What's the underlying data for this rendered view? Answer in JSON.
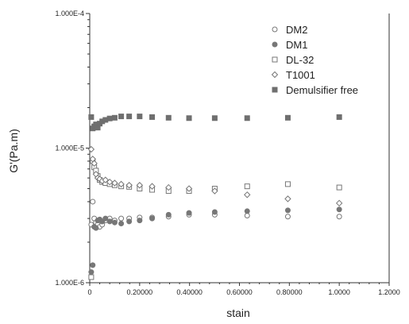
{
  "chart_data": {
    "type": "scatter",
    "title": "",
    "xlabel": "stain",
    "ylabel": "G'(Pa.m)",
    "xlim": [
      0,
      1.2
    ],
    "ylim": [
      1e-06,
      0.0001
    ],
    "yscale": "log",
    "grid": false,
    "legend_position": "top-right",
    "x_ticks": [
      {
        "value": 0,
        "label": "0"
      },
      {
        "value": 0.2,
        "label": "0.20000"
      },
      {
        "value": 0.4,
        "label": "0.40000"
      },
      {
        "value": 0.6,
        "label": "0.60000"
      },
      {
        "value": 0.8,
        "label": "0.80000"
      },
      {
        "value": 1.0,
        "label": "1.0000"
      },
      {
        "value": 1.2,
        "label": "1.2000"
      }
    ],
    "y_ticks": [
      {
        "value": 1e-06,
        "label": "1.000E-6"
      },
      {
        "value": 1e-05,
        "label": "1.000E-5"
      },
      {
        "value": 0.0001,
        "label": "1.000E-4"
      }
    ],
    "series": [
      {
        "name": "DM2",
        "marker": "circle-open",
        "color": "#777777",
        "x": [
          0.006,
          0.012,
          0.018,
          0.025,
          0.032,
          0.04,
          0.05,
          0.063,
          0.08,
          0.1,
          0.126,
          0.158,
          0.2,
          0.25,
          0.316,
          0.398,
          0.501,
          0.631,
          0.794,
          1.0
        ],
        "y": [
          2.7e-06,
          4e-06,
          3e-06,
          2.8e-06,
          2.7e-06,
          2.6e-06,
          2.7e-06,
          2.9e-06,
          3e-06,
          2.9e-06,
          3e-06,
          3e-06,
          3.05e-06,
          3.05e-06,
          3.1e-06,
          3.2e-06,
          3.2e-06,
          3.15e-06,
          3.1e-06,
          3.1e-06
        ]
      },
      {
        "name": "DM1",
        "marker": "circle-filled",
        "color": "#777777",
        "x": [
          0.006,
          0.012,
          0.018,
          0.025,
          0.032,
          0.04,
          0.05,
          0.063,
          0.08,
          0.1,
          0.126,
          0.158,
          0.2,
          0.25,
          0.316,
          0.398,
          0.501,
          0.631,
          0.794,
          1.0
        ],
        "y": [
          1.2e-06,
          1.35e-06,
          2.6e-06,
          2.55e-06,
          2.9e-06,
          2.95e-06,
          2.85e-06,
          3e-06,
          2.85e-06,
          2.8e-06,
          2.75e-06,
          2.85e-06,
          2.9e-06,
          3e-06,
          3.2e-06,
          3.3e-06,
          3.35e-06,
          3.4e-06,
          3.45e-06,
          3.5e-06
        ]
      },
      {
        "name": "DL-32",
        "marker": "square-open",
        "color": "#777777",
        "x": [
          0.006,
          0.012,
          0.018,
          0.025,
          0.032,
          0.04,
          0.05,
          0.063,
          0.08,
          0.1,
          0.126,
          0.158,
          0.2,
          0.25,
          0.316,
          0.398,
          0.501,
          0.631,
          0.794,
          1.0
        ],
        "y": [
          1.1e-06,
          8e-06,
          7.2e-06,
          6.8e-06,
          6.2e-06,
          5.8e-06,
          5.6e-06,
          5.5e-06,
          5.4e-06,
          5.3e-06,
          5.2e-06,
          5.15e-06,
          5e-06,
          4.9e-06,
          4.8e-06,
          4.8e-06,
          5e-06,
          5.2e-06,
          5.4e-06,
          5.1e-06
        ]
      },
      {
        "name": "T1001",
        "marker": "diamond-open",
        "color": "#777777",
        "x": [
          0.006,
          0.012,
          0.018,
          0.025,
          0.032,
          0.04,
          0.05,
          0.063,
          0.08,
          0.1,
          0.126,
          0.158,
          0.2,
          0.25,
          0.316,
          0.398,
          0.501,
          0.631,
          0.794,
          1.0
        ],
        "y": [
          9.8e-06,
          8.3e-06,
          7.7e-06,
          6.4e-06,
          6e-06,
          5.9e-06,
          5.7e-06,
          5.8e-06,
          5.6e-06,
          5.5e-06,
          5.4e-06,
          5.3e-06,
          5.3e-06,
          5.2e-06,
          5.1e-06,
          5e-06,
          4.8e-06,
          4.5e-06,
          4.2e-06,
          3.9e-06
        ]
      },
      {
        "name": "Demulsifier free",
        "marker": "square-filled",
        "color": "#6f6f6f",
        "x": [
          0.006,
          0.012,
          0.018,
          0.025,
          0.032,
          0.04,
          0.05,
          0.063,
          0.08,
          0.1,
          0.126,
          0.158,
          0.2,
          0.25,
          0.316,
          0.398,
          0.501,
          0.631,
          0.794,
          1.0
        ],
        "y": [
          1.7e-05,
          1.4e-05,
          1.45e-05,
          1.5e-05,
          1.42e-05,
          1.52e-05,
          1.58e-05,
          1.62e-05,
          1.66e-05,
          1.68e-05,
          1.72e-05,
          1.72e-05,
          1.72e-05,
          1.7e-05,
          1.68e-05,
          1.67e-05,
          1.67e-05,
          1.67e-05,
          1.68e-05,
          1.7e-05
        ]
      }
    ]
  }
}
